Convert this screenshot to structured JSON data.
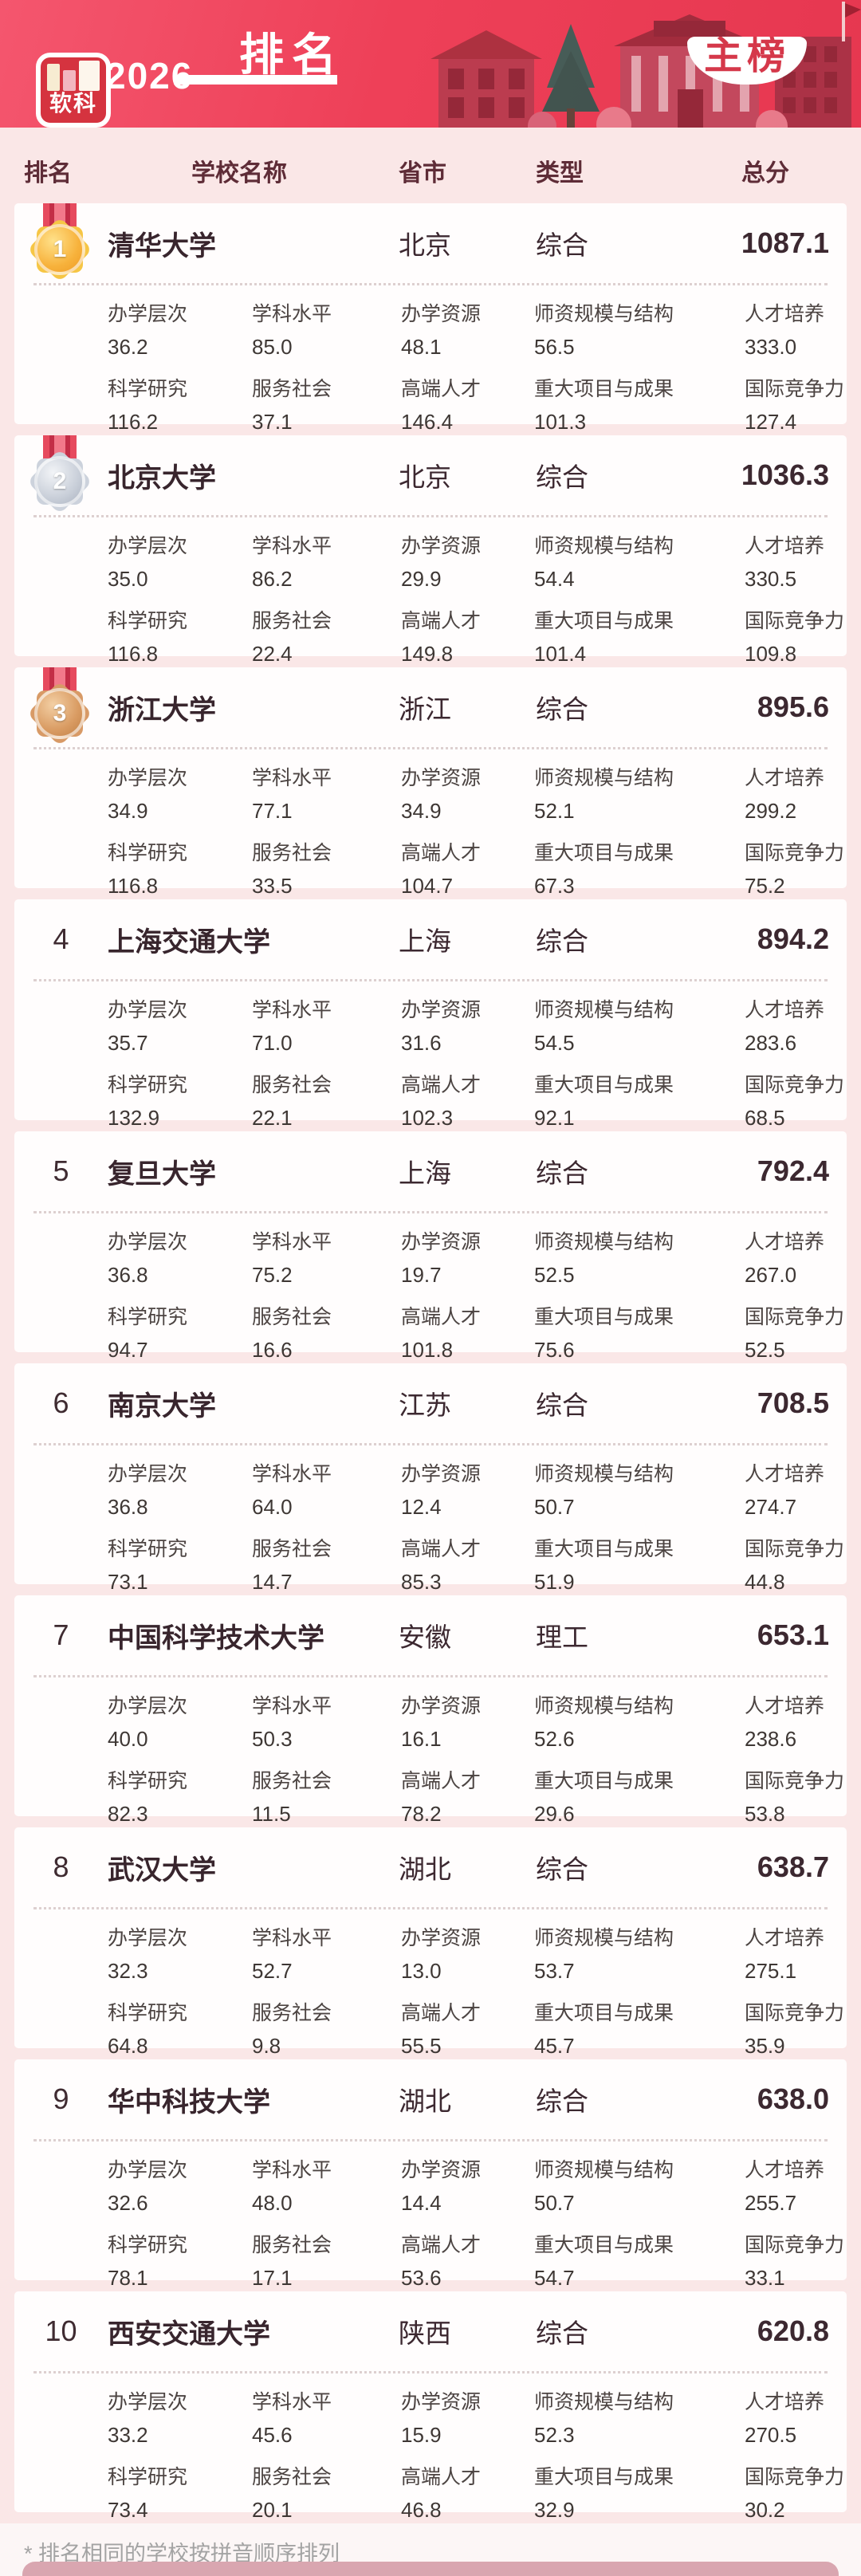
{
  "header": {
    "logo_text": "软科",
    "year": "2026",
    "title": "排名",
    "banner": "主榜"
  },
  "table_header": {
    "rank": "排名",
    "school": "学校名称",
    "province": "省市",
    "type": "类型",
    "score": "总分"
  },
  "metric_labels": [
    "办学层次",
    "学科水平",
    "办学资源",
    "师资规模与结构",
    "人才培养",
    "科学研究",
    "服务社会",
    "高端人才",
    "重大项目与成果",
    "国际竞争力"
  ],
  "rows": [
    {
      "rank": "1",
      "medal": "gold",
      "school": "清华大学",
      "province": "北京",
      "type": "综合",
      "score": "1087.1",
      "metrics": [
        "36.2",
        "85.0",
        "48.1",
        "56.5",
        "333.0",
        "116.2",
        "37.1",
        "146.4",
        "101.3",
        "127.4"
      ]
    },
    {
      "rank": "2",
      "medal": "silver",
      "school": "北京大学",
      "province": "北京",
      "type": "综合",
      "score": "1036.3",
      "metrics": [
        "35.0",
        "86.2",
        "29.9",
        "54.4",
        "330.5",
        "116.8",
        "22.4",
        "149.8",
        "101.4",
        "109.8"
      ]
    },
    {
      "rank": "3",
      "medal": "bronze",
      "school": "浙江大学",
      "province": "浙江",
      "type": "综合",
      "score": "895.6",
      "metrics": [
        "34.9",
        "77.1",
        "34.9",
        "52.1",
        "299.2",
        "116.8",
        "33.5",
        "104.7",
        "67.3",
        "75.2"
      ]
    },
    {
      "rank": "4",
      "medal": null,
      "school": "上海交通大学",
      "province": "上海",
      "type": "综合",
      "score": "894.2",
      "metrics": [
        "35.7",
        "71.0",
        "31.6",
        "54.5",
        "283.6",
        "132.9",
        "22.1",
        "102.3",
        "92.1",
        "68.5"
      ]
    },
    {
      "rank": "5",
      "medal": null,
      "school": "复旦大学",
      "province": "上海",
      "type": "综合",
      "score": "792.4",
      "metrics": [
        "36.8",
        "75.2",
        "19.7",
        "52.5",
        "267.0",
        "94.7",
        "16.6",
        "101.8",
        "75.6",
        "52.5"
      ]
    },
    {
      "rank": "6",
      "medal": null,
      "school": "南京大学",
      "province": "江苏",
      "type": "综合",
      "score": "708.5",
      "metrics": [
        "36.8",
        "64.0",
        "12.4",
        "50.7",
        "274.7",
        "73.1",
        "14.7",
        "85.3",
        "51.9",
        "44.8"
      ]
    },
    {
      "rank": "7",
      "medal": null,
      "school": "中国科学技术大学",
      "province": "安徽",
      "type": "理工",
      "score": "653.1",
      "metrics": [
        "40.0",
        "50.3",
        "16.1",
        "52.6",
        "238.6",
        "82.3",
        "11.5",
        "78.2",
        "29.6",
        "53.8"
      ]
    },
    {
      "rank": "8",
      "medal": null,
      "school": "武汉大学",
      "province": "湖北",
      "type": "综合",
      "score": "638.7",
      "metrics": [
        "32.3",
        "52.7",
        "13.0",
        "53.7",
        "275.1",
        "64.8",
        "9.8",
        "55.5",
        "45.7",
        "35.9"
      ]
    },
    {
      "rank": "9",
      "medal": null,
      "school": "华中科技大学",
      "province": "湖北",
      "type": "综合",
      "score": "638.0",
      "metrics": [
        "32.6",
        "48.0",
        "14.4",
        "50.7",
        "255.7",
        "78.1",
        "17.1",
        "53.6",
        "54.7",
        "33.1"
      ]
    },
    {
      "rank": "10",
      "medal": null,
      "school": "西安交通大学",
      "province": "陕西",
      "type": "综合",
      "score": "620.8",
      "metrics": [
        "33.2",
        "45.6",
        "15.9",
        "52.3",
        "270.5",
        "73.4",
        "20.1",
        "46.8",
        "32.9",
        "30.2"
      ]
    }
  ],
  "footnote": "* 排名相同的学校按拼音顺序排列"
}
